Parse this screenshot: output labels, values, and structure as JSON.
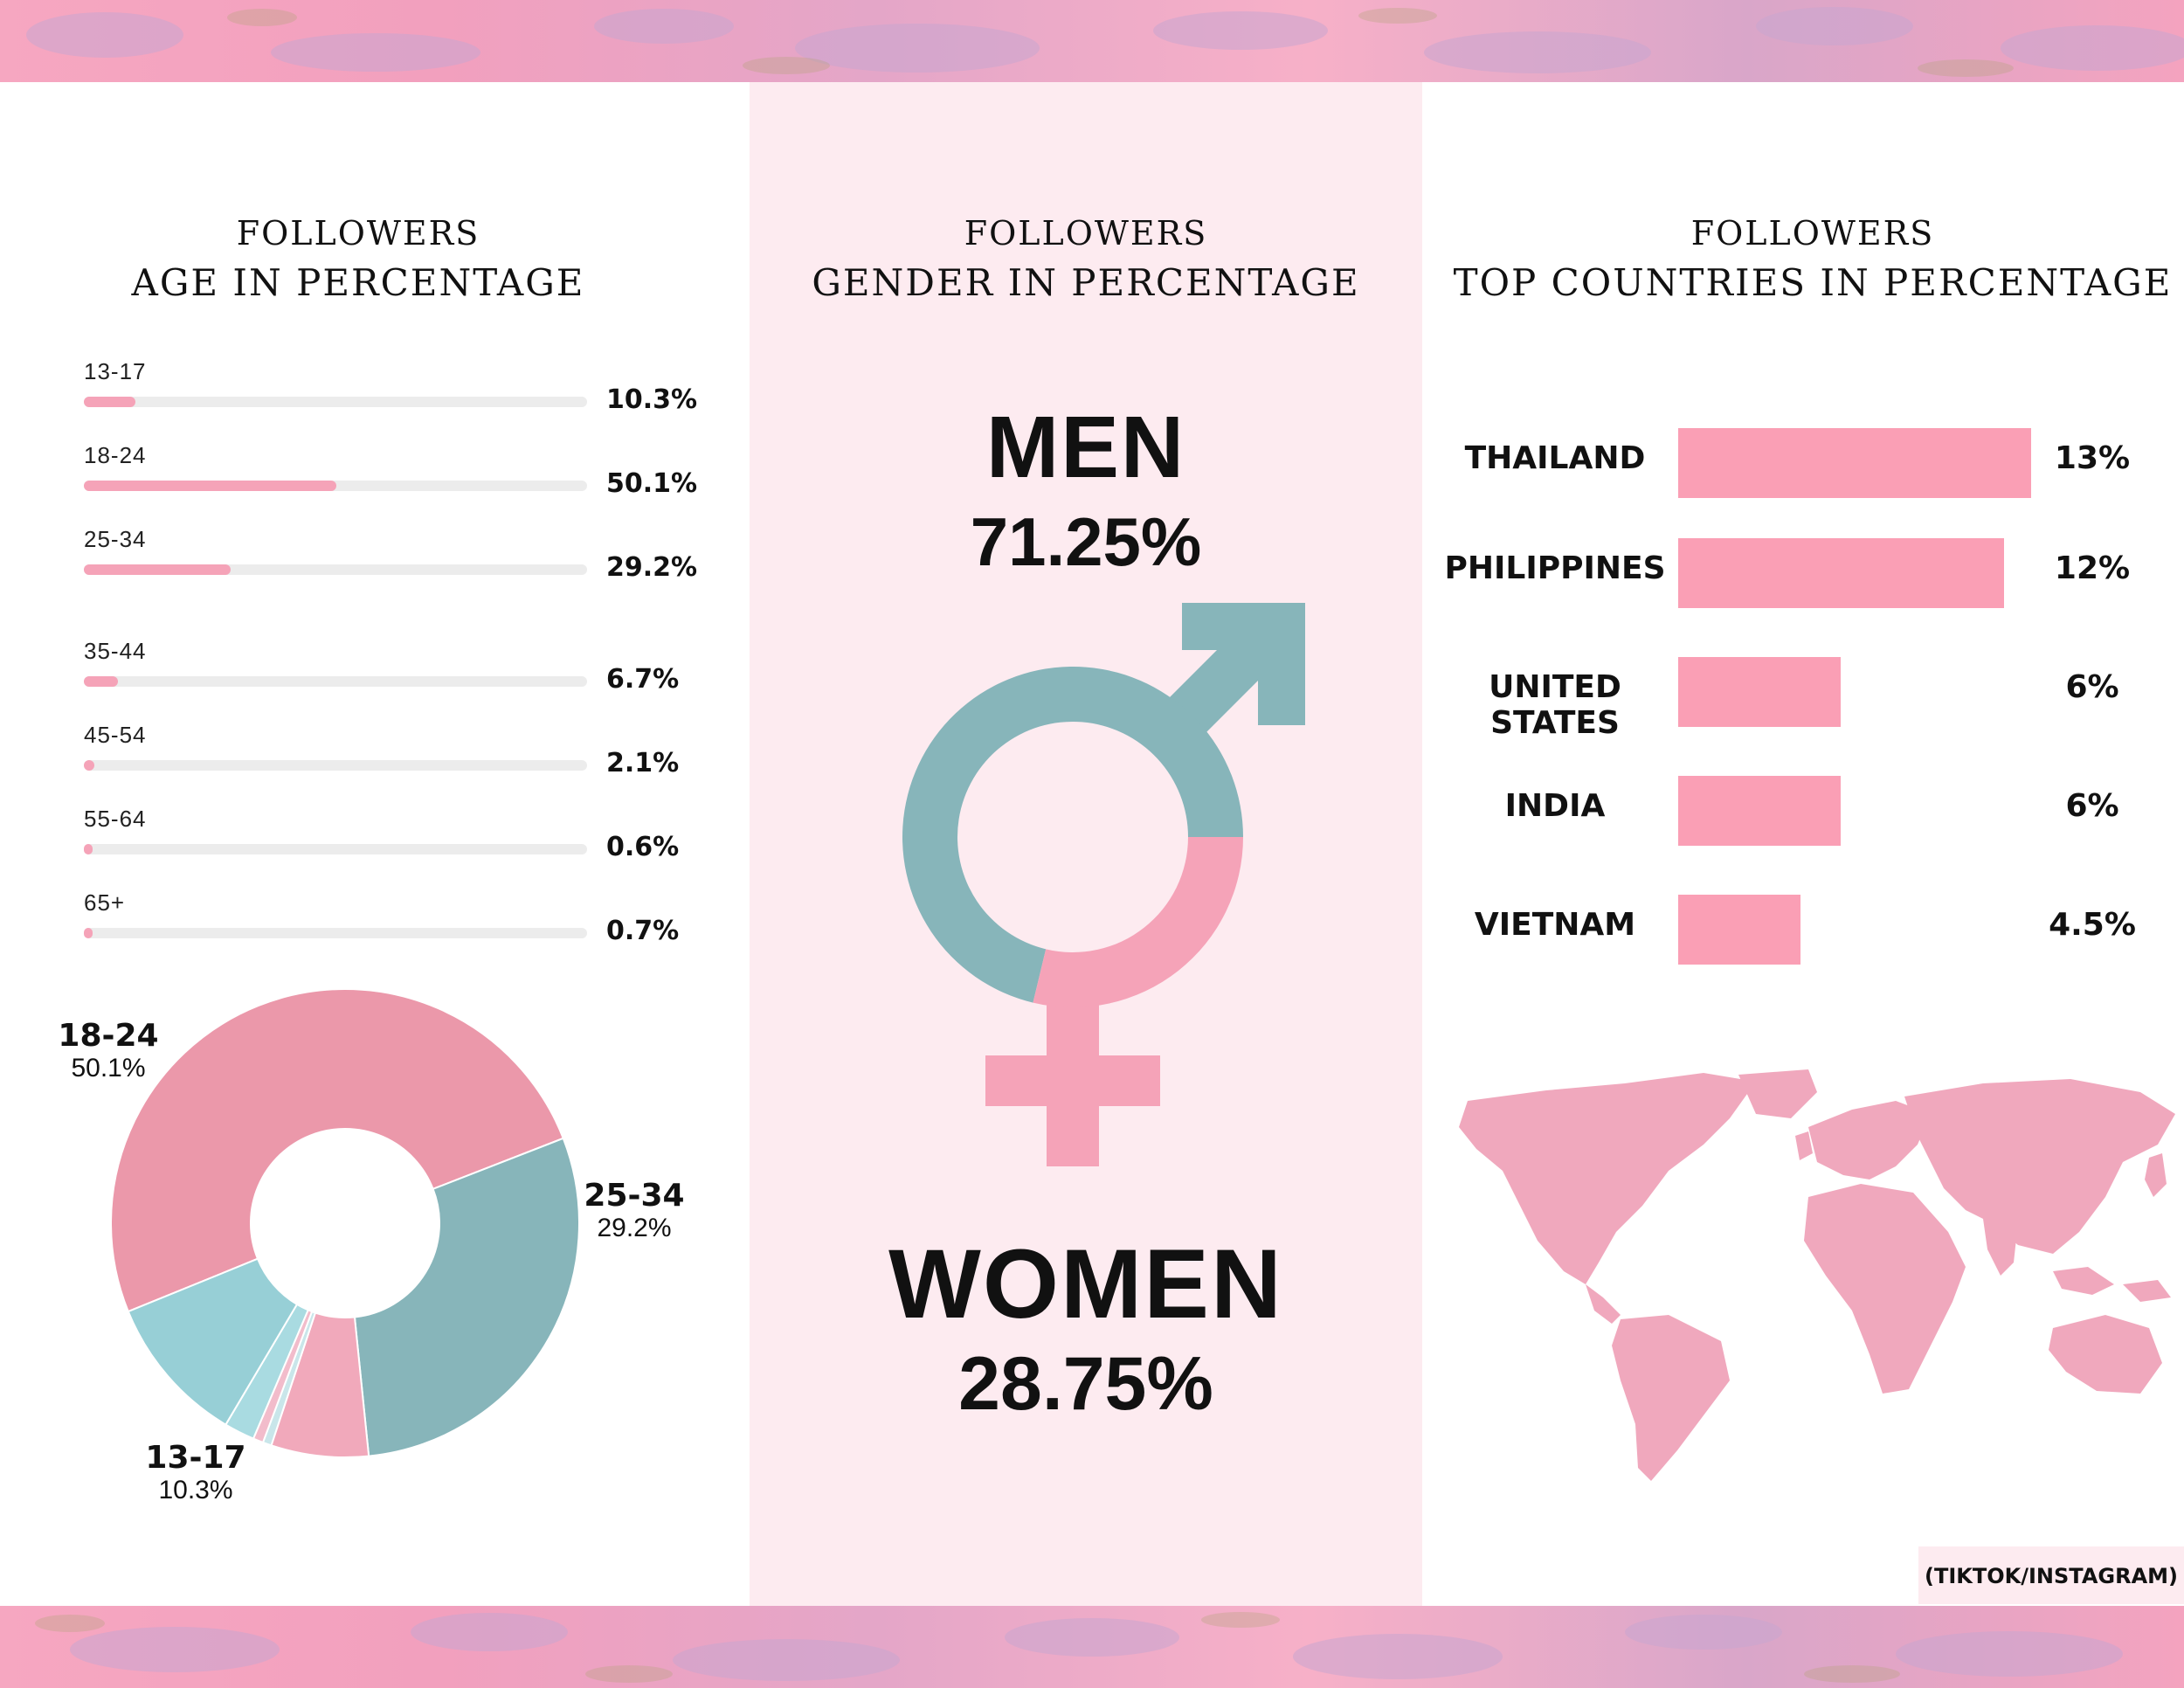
{
  "age_section": {
    "title_line1": "FOLLOWERS",
    "title_line2": "AGE IN PERCENTAGE"
  },
  "gender_section": {
    "title_line1": "FOLLOWERS",
    "title_line2": "GENDER IN PERCENTAGE",
    "men_label": "MEN",
    "men_value": "71.25%",
    "women_label": "WOMEN",
    "women_value": "28.75%"
  },
  "countries_section": {
    "title_line1": "FOLLOWERS",
    "title_line2": "TOP COUNTRIES IN PERCENTAGE"
  },
  "source_note": "(TIKTOK/INSTAGRAM)",
  "colors": {
    "pink": "#f5a3b8",
    "rose": "#eb98aa",
    "teal": "#87b5ba",
    "light_teal": "#97cfd6",
    "track": "#ececec",
    "map": "#f0a8bd",
    "panel": "#fdebf0"
  },
  "chart_data": [
    {
      "type": "bar",
      "orientation": "horizontal",
      "title": "FOLLOWERS AGE IN PERCENTAGE",
      "categories": [
        "13-17",
        "18-24",
        "25-34",
        "35-44",
        "45-54",
        "55-64",
        "65+"
      ],
      "values": [
        10.3,
        50.1,
        29.2,
        6.7,
        2.1,
        0.6,
        0.7
      ],
      "value_labels": [
        "10.3%",
        "50.1%",
        "29.2%",
        "6.7%",
        "2.1%",
        "0.6%",
        "0.7%"
      ],
      "xlim": [
        0,
        100
      ]
    },
    {
      "type": "pie",
      "donut": true,
      "categories": [
        "18-24",
        "25-34",
        "35-44",
        "55-64",
        "65+",
        "45-54",
        "13-17"
      ],
      "values": [
        50.1,
        29.2,
        6.7,
        0.6,
        0.7,
        2.1,
        10.3
      ],
      "colors": [
        "#eb98aa",
        "#87b5ba",
        "#f1a9bb",
        "#c9e6ea",
        "#f2bccb",
        "#a9dbe1",
        "#97cfd6"
      ],
      "labels": [
        {
          "range": "18-24",
          "value": "50.1%"
        },
        {
          "range": "25-34",
          "value": "29.2%"
        },
        {
          "range": "13-17",
          "value": "10.3%"
        }
      ]
    },
    {
      "type": "bar",
      "orientation": "horizontal",
      "title": "FOLLOWERS TOP COUNTRIES IN PERCENTAGE",
      "categories": [
        "THAILAND",
        "PHILIPPINES",
        "UNITED STATES",
        "INDIA",
        "VIETNAM"
      ],
      "values": [
        13,
        12,
        6,
        6,
        4.5
      ],
      "value_labels": [
        "13%",
        "12%",
        "6%",
        "6%",
        "4.5%"
      ],
      "xlim": [
        0,
        13
      ]
    },
    {
      "type": "pie",
      "donut": true,
      "title": "FOLLOWERS GENDER IN PERCENTAGE",
      "categories": [
        "MEN",
        "WOMEN"
      ],
      "values": [
        71.25,
        28.75
      ],
      "colors": [
        "#87b5ba",
        "#f5a3b8"
      ]
    }
  ]
}
